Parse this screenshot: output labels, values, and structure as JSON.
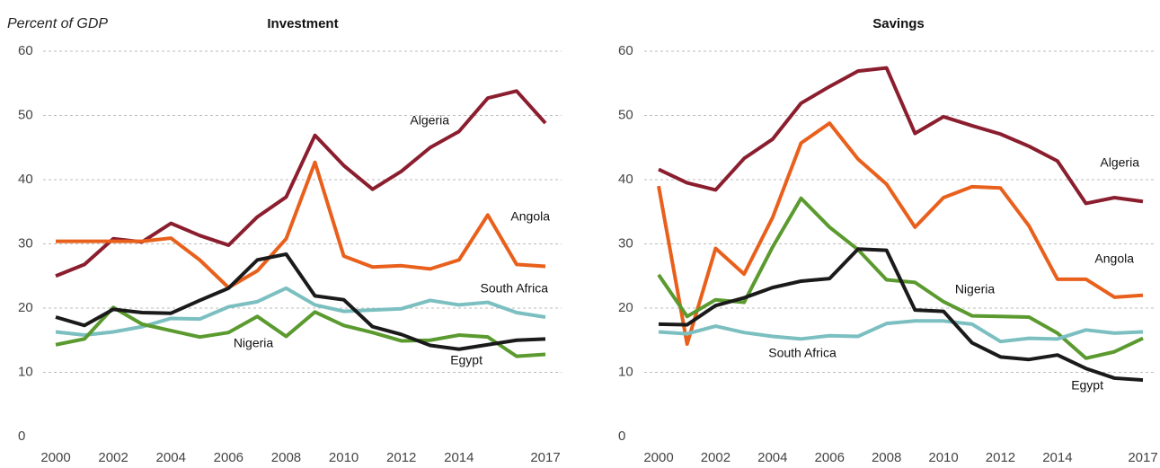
{
  "chart_data": [
    {
      "type": "line",
      "title": "Investment",
      "ylabel": "Percent of GDP",
      "x": [
        2000,
        2001,
        2002,
        2003,
        2004,
        2005,
        2006,
        2007,
        2008,
        2009,
        2010,
        2011,
        2012,
        2013,
        2014,
        2015,
        2016,
        2017
      ],
      "xlim": [
        2000,
        2017
      ],
      "xticks": [
        2000,
        2002,
        2004,
        2006,
        2008,
        2010,
        2012,
        2014,
        2017
      ],
      "ylim": [
        0,
        60
      ],
      "yticks": [
        0,
        10,
        20,
        30,
        40,
        50,
        60
      ],
      "grid": true,
      "series": [
        {
          "name": "Algeria",
          "color": "#8b1e2e",
          "values": [
            25,
            26.8,
            30.8,
            30.3,
            33.2,
            31.3,
            29.8,
            34.2,
            37.3,
            46.9,
            42.2,
            38.5,
            41.3,
            45,
            47.5,
            52.7,
            53.8,
            48.8
          ]
        },
        {
          "name": "Angola",
          "color": "#e8601c",
          "values": [
            30.4,
            30.4,
            30.4,
            30.4,
            30.9,
            27.5,
            23.2,
            25.8,
            30.8,
            42.7,
            28.1,
            26.4,
            26.6,
            26.1,
            27.5,
            34.5,
            26.8,
            26.5
          ]
        },
        {
          "name": "South Africa",
          "color": "#7bbfc1",
          "values": [
            16.3,
            15.8,
            16.3,
            17.1,
            18.4,
            18.3,
            20.2,
            21,
            23.1,
            20.5,
            19.5,
            19.7,
            19.9,
            21.2,
            20.5,
            20.9,
            19.3,
            18.6
          ]
        },
        {
          "name": "Nigeria",
          "color": "#5a9a2e",
          "values": [
            14.3,
            15.2,
            20.1,
            17.5,
            16.5,
            15.5,
            16.2,
            18.7,
            15.6,
            19.4,
            17.3,
            16.2,
            14.9,
            15,
            15.8,
            15.5,
            12.5,
            12.8
          ]
        },
        {
          "name": "Egypt",
          "color": "#1a1a1a",
          "values": [
            18.6,
            17.3,
            19.8,
            19.3,
            19.2,
            21.2,
            23.1,
            27.5,
            28.4,
            21.9,
            21.3,
            17.1,
            15.9,
            14.2,
            13.6,
            14.3,
            15,
            15.2
          ]
        }
      ]
    },
    {
      "type": "line",
      "title": "Savings",
      "x": [
        2000,
        2001,
        2002,
        2003,
        2004,
        2005,
        2006,
        2007,
        2008,
        2009,
        2010,
        2011,
        2012,
        2013,
        2014,
        2015,
        2016,
        2017
      ],
      "xlim": [
        2000,
        2017
      ],
      "xticks": [
        2000,
        2002,
        2004,
        2006,
        2008,
        2010,
        2012,
        2014,
        2017
      ],
      "ylim": [
        0,
        60
      ],
      "yticks": [
        0,
        10,
        20,
        30,
        40,
        50,
        60
      ],
      "grid": true,
      "series": [
        {
          "name": "Algeria",
          "color": "#8b1e2e",
          "values": [
            41.6,
            39.5,
            38.4,
            43.3,
            46.3,
            51.9,
            54.5,
            56.9,
            57.4,
            47.2,
            49.8,
            48.4,
            47.1,
            45.2,
            42.9,
            36.3,
            37.2,
            36.6
          ]
        },
        {
          "name": "Angola",
          "color": "#e8601c",
          "values": [
            39,
            14.4,
            29.3,
            25.3,
            34.1,
            45.7,
            48.8,
            43.2,
            39.3,
            32.6,
            37.2,
            38.9,
            38.7,
            32.8,
            24.5,
            24.5,
            21.7,
            22
          ]
        },
        {
          "name": "Nigeria",
          "color": "#5a9a2e",
          "values": [
            25.2,
            18.7,
            21.3,
            20.9,
            29.5,
            37.1,
            32.6,
            29.1,
            24.4,
            24,
            21,
            18.8,
            18.7,
            18.6,
            16.1,
            12.2,
            13.2,
            15.3
          ]
        },
        {
          "name": "South Africa",
          "color": "#7bbfc1",
          "values": [
            16.3,
            16,
            17.2,
            16.2,
            15.6,
            15.2,
            15.7,
            15.6,
            17.6,
            18,
            18,
            17.5,
            14.8,
            15.3,
            15.2,
            16.6,
            16.1,
            16.3
          ]
        },
        {
          "name": "Egypt",
          "color": "#1a1a1a",
          "values": [
            17.5,
            17.4,
            20.4,
            21.6,
            23.2,
            24.2,
            24.6,
            29.2,
            29,
            19.7,
            19.5,
            14.6,
            12.4,
            12,
            12.7,
            10.6,
            9.1,
            8.8
          ]
        }
      ]
    }
  ]
}
